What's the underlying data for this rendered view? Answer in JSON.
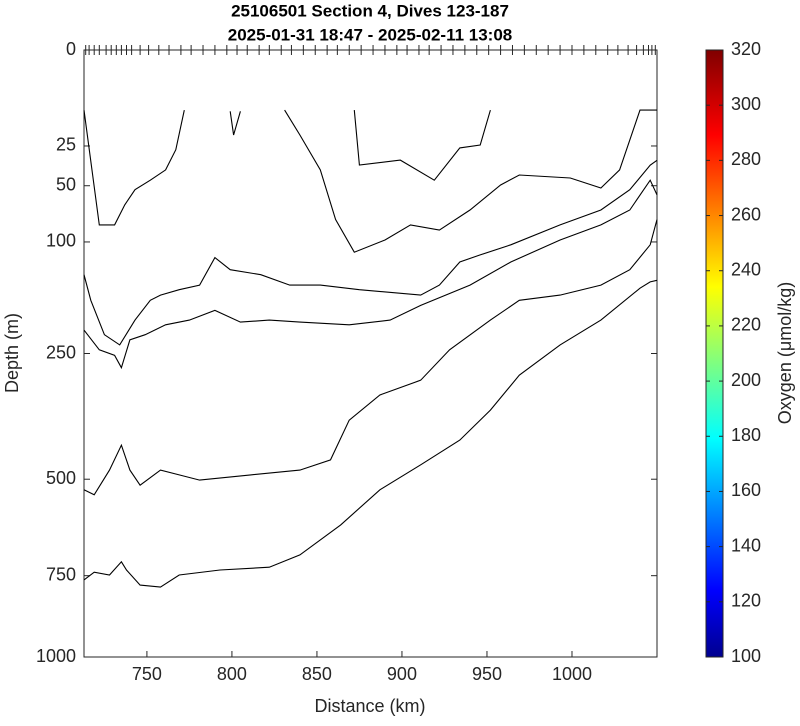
{
  "chart_data": {
    "type": "contour",
    "title": [
      "25106501 Section 4, Dives 123-187",
      "2025-01-31 18:47 - 2025-02-11 13:08"
    ],
    "x_label": "Distance (km)",
    "y_label": "Depth (m)",
    "xlim": [
      713,
      1050
    ],
    "xticks": [
      750,
      800,
      850,
      900,
      950,
      1000
    ],
    "ylim": [
      0,
      1000
    ],
    "yticks": [
      0,
      25,
      50,
      100,
      250,
      500,
      750,
      1000
    ],
    "yscale": "sqrt",
    "yreverse": true,
    "dive_positions": [
      714,
      716,
      719,
      722,
      726,
      729,
      732,
      735,
      738,
      741,
      746,
      751,
      757,
      763,
      770,
      776,
      783,
      790,
      797,
      803,
      809,
      816,
      822,
      829,
      835,
      842,
      849,
      856,
      862,
      869,
      876,
      883,
      890,
      897,
      903,
      910,
      916,
      923,
      930,
      937,
      944,
      951,
      958,
      965,
      972,
      979,
      986,
      993,
      1000,
      1007,
      1014,
      1021,
      1027,
      1033,
      1038,
      1042,
      1045,
      1047,
      1049
    ],
    "series": [
      {
        "color": "#000000",
        "x": [
          713,
          722,
          731,
          737,
          743,
          752,
          761,
          767,
          772
        ],
        "values": [
          9.8,
          83,
          83,
          65,
          53,
          46,
          39,
          27,
          9.8
        ]
      },
      {
        "color": "#000000",
        "x": [
          799,
          801,
          805
        ],
        "values": [
          10.2,
          19.6,
          10.2
        ]
      },
      {
        "color": "#000000",
        "x": [
          831,
          840,
          852,
          861,
          872,
          890,
          905,
          922,
          940,
          958,
          969,
          999,
          1017,
          1028,
          1040,
          1050
        ],
        "values": [
          9.8,
          19.6,
          39,
          78,
          111,
          98,
          83,
          88,
          69.5,
          49.5,
          42.4,
          44.5,
          51.7,
          39,
          9.8,
          9.8
        ]
      },
      {
        "color": "#000000",
        "x": [
          872,
          875,
          899,
          919,
          934,
          946,
          952
        ],
        "values": [
          9.8,
          35.9,
          32.9,
          46,
          26,
          24.5,
          9.8
        ]
      },
      {
        "color": "#000000",
        "x": [
          713,
          717,
          725,
          734,
          743,
          752,
          758,
          769,
          781,
          790,
          799,
          817,
          834,
          852,
          875,
          911,
          922,
          934,
          946,
          964,
          993,
          1017,
          1034,
          1046,
          1050
        ],
        "values": [
          137,
          170,
          220,
          236,
          198,
          170,
          163,
          156,
          150,
          117,
          131,
          137,
          150,
          150,
          156,
          163,
          150,
          122,
          114,
          103,
          83,
          69.5,
          53,
          36,
          33
        ]
      },
      {
        "color": "#000000",
        "x": [
          713,
          722,
          731,
          735,
          740,
          749,
          761,
          775,
          790,
          805,
          822,
          840,
          869,
          893,
          911,
          940,
          964,
          993,
          1017,
          1034,
          1046,
          1050
        ],
        "values": [
          213,
          244,
          253,
          274,
          228,
          220,
          205,
          198,
          184,
          201,
          198,
          201,
          205,
          198,
          177,
          150,
          122,
          98,
          83,
          69.5,
          46,
          57
        ]
      },
      {
        "color": "#000000",
        "x": [
          713,
          719,
          728,
          735,
          740,
          746,
          758,
          769,
          781,
          811,
          840,
          858,
          869,
          887,
          911,
          928,
          952,
          969,
          993,
          1017,
          1034,
          1046,
          1050
        ],
        "values": [
          525,
          537,
          479,
          424,
          479,
          514,
          479,
          490,
          502,
          490,
          479,
          456,
          372,
          323,
          296,
          244,
          198,
          170,
          163,
          150,
          131,
          103,
          78
        ]
      },
      {
        "color": "#000000",
        "x": [
          713,
          719,
          728,
          735,
          738,
          746,
          758,
          769,
          793,
          822,
          840,
          864,
          887,
          911,
          934,
          952,
          969,
          993,
          1017,
          1040,
          1046,
          1050
        ],
        "values": [
          762,
          740,
          748,
          711,
          734,
          777,
          783,
          748,
          734,
          726,
          692,
          612,
          525,
          467,
          413,
          352,
          287,
          236,
          198,
          154,
          146,
          144
        ]
      }
    ],
    "colorbar": {
      "label": "Oxygen (μmol/kg)",
      "colormap": "jet",
      "clim": [
        100,
        320
      ],
      "ticks": [
        100,
        120,
        140,
        160,
        180,
        200,
        220,
        240,
        260,
        280,
        300,
        320
      ]
    }
  }
}
